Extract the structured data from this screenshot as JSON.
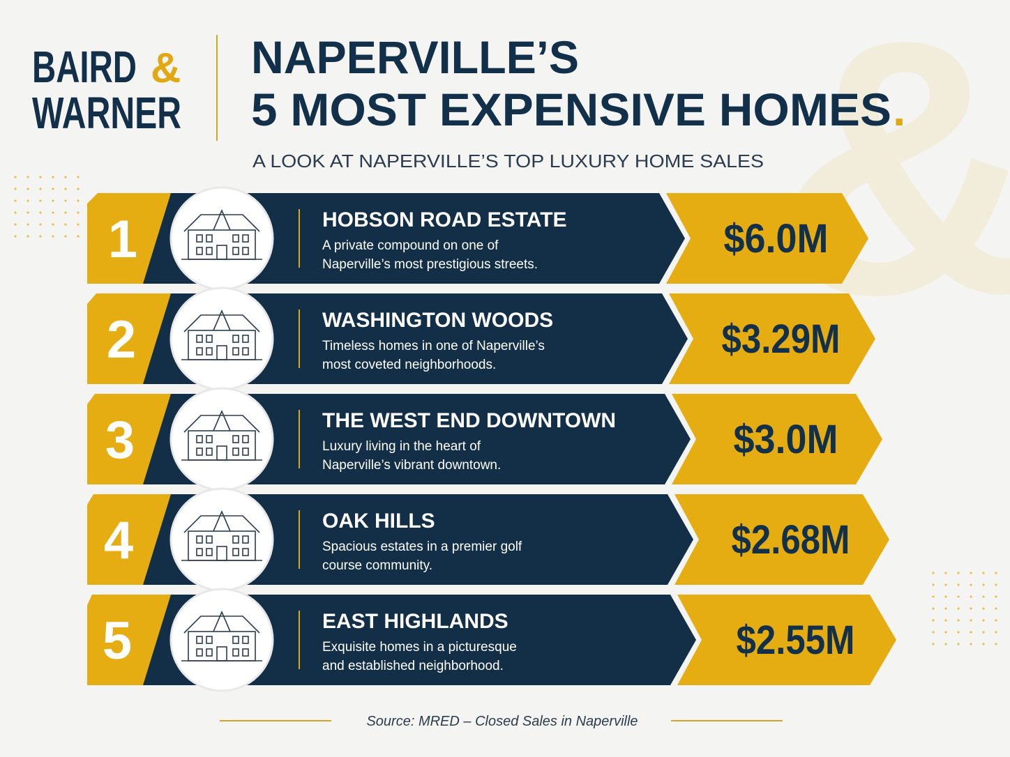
{
  "logo": {
    "line1": "BAIRD",
    "amp": "&",
    "line2": "WARNER"
  },
  "header": {
    "title_line1": "NAPERVILLE’S",
    "title_line2": "5 MOST EXPENSIVE HOMES",
    "title_end": ".",
    "subtitle": "A LOOK AT NAPERVILLE’S TOP LUXURY HOME SALES"
  },
  "watermark": "&",
  "items": [
    {
      "rank": 1,
      "name": "HOBSON ROAD ESTATE",
      "description": [
        "A private compound on one of",
        "Naperville’s most prestigious streets."
      ],
      "price": "$6.0M"
    },
    {
      "rank": 2,
      "name": "WASHINGTON WOODS",
      "description": [
        "Timeless homes in one of Naperville’s",
        "most coveted neighborhoods."
      ],
      "price": "$3.29M"
    },
    {
      "rank": 3,
      "name": "THE WEST END DOWNTOWN",
      "description": [
        "Luxury living in the heart of",
        "Naperville’s vibrant downtown."
      ],
      "price": "$3.0M"
    },
    {
      "rank": 4,
      "name": "OAK HILLS",
      "description": [
        "Spacious estates in a premier golf",
        "course community."
      ],
      "price": "$2.68M"
    },
    {
      "rank": 5,
      "name": "EAST HIGHLANDS",
      "description": [
        "Exquisite homes in a picturesque",
        "and established neighborhood."
      ],
      "price": "$2.55M"
    }
  ],
  "footer": {
    "source": "Source: MRED – Closed Sales in Naperville"
  }
}
